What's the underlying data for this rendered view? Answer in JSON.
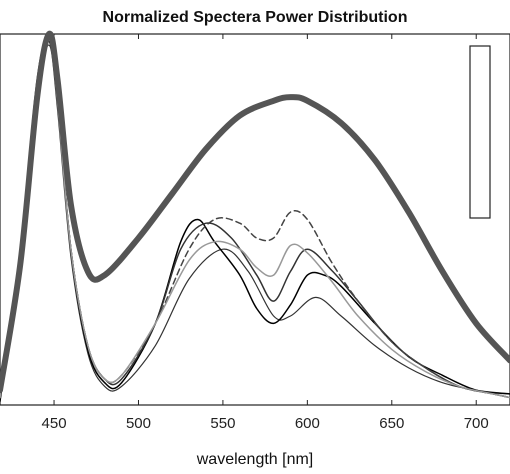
{
  "chart_data": {
    "type": "line",
    "title": "Normalized Spectera Power Distribution",
    "xlabel": "wavelength [nm]",
    "ylabel": "",
    "xlim": [
      418,
      720
    ],
    "ylim": [
      0,
      1.0
    ],
    "x_ticks": [
      450,
      500,
      550,
      600,
      650,
      700
    ],
    "grid": false,
    "legend": "top-right (box, cropped)",
    "series": [
      {
        "color": "#555555",
        "width": 6,
        "dash": "",
        "x": [
          418,
          430,
          440,
          447,
          452,
          460,
          470,
          480,
          500,
          520,
          540,
          560,
          580,
          590,
          600,
          620,
          640,
          660,
          680,
          700,
          720
        ],
        "y": [
          0.04,
          0.38,
          0.83,
          1.0,
          0.88,
          0.54,
          0.36,
          0.35,
          0.45,
          0.57,
          0.69,
          0.78,
          0.82,
          0.83,
          0.82,
          0.76,
          0.66,
          0.52,
          0.36,
          0.22,
          0.12
        ]
      },
      {
        "color": "#000000",
        "width": 1.5,
        "dash": "",
        "x": [
          418,
          430,
          440,
          447,
          452,
          460,
          470,
          480,
          490,
          510,
          525,
          535,
          545,
          560,
          570,
          580,
          590,
          600,
          610,
          620,
          640,
          660,
          680,
          700,
          720
        ],
        "y": [
          0.01,
          0.4,
          0.86,
          0.99,
          0.82,
          0.42,
          0.15,
          0.06,
          0.06,
          0.22,
          0.44,
          0.5,
          0.44,
          0.35,
          0.26,
          0.22,
          0.27,
          0.35,
          0.35,
          0.32,
          0.22,
          0.13,
          0.08,
          0.04,
          0.03
        ]
      },
      {
        "color": "#333333",
        "width": 1.5,
        "dash": "",
        "x": [
          418,
          430,
          440,
          447,
          452,
          460,
          470,
          480,
          490,
          510,
          525,
          540,
          555,
          570,
          580,
          590,
          600,
          615,
          630,
          650,
          670,
          690,
          710,
          720
        ],
        "y": [
          0.02,
          0.42,
          0.88,
          0.98,
          0.82,
          0.42,
          0.16,
          0.07,
          0.07,
          0.22,
          0.42,
          0.49,
          0.45,
          0.35,
          0.28,
          0.36,
          0.42,
          0.36,
          0.28,
          0.17,
          0.1,
          0.05,
          0.03,
          0.02
        ]
      },
      {
        "color": "#444444",
        "width": 1.5,
        "dash": "6,4",
        "x": [
          418,
          430,
          440,
          447,
          452,
          460,
          470,
          480,
          490,
          510,
          530,
          545,
          560,
          570,
          580,
          590,
          600,
          615,
          630,
          650,
          670,
          690,
          710,
          720
        ],
        "y": [
          0.02,
          0.42,
          0.86,
          0.99,
          0.82,
          0.42,
          0.16,
          0.07,
          0.08,
          0.22,
          0.42,
          0.5,
          0.49,
          0.45,
          0.45,
          0.52,
          0.5,
          0.38,
          0.28,
          0.17,
          0.1,
          0.05,
          0.03,
          0.02
        ]
      },
      {
        "color": "#999999",
        "width": 1.5,
        "dash": "",
        "x": [
          418,
          430,
          440,
          447,
          452,
          460,
          470,
          480,
          490,
          510,
          530,
          545,
          560,
          570,
          580,
          590,
          600,
          615,
          630,
          650,
          670,
          690,
          710,
          720
        ],
        "y": [
          0.02,
          0.42,
          0.86,
          0.99,
          0.82,
          0.42,
          0.16,
          0.07,
          0.08,
          0.22,
          0.39,
          0.44,
          0.42,
          0.37,
          0.35,
          0.43,
          0.41,
          0.33,
          0.24,
          0.15,
          0.09,
          0.05,
          0.03,
          0.02
        ]
      },
      {
        "color": "#333333",
        "width": 1.2,
        "dash": "",
        "x": [
          418,
          430,
          440,
          447,
          452,
          460,
          470,
          480,
          490,
          510,
          530,
          550,
          565,
          580,
          590,
          605,
          620,
          640,
          660,
          680,
          700,
          720
        ],
        "y": [
          0.02,
          0.38,
          0.82,
          0.97,
          0.8,
          0.4,
          0.14,
          0.05,
          0.05,
          0.16,
          0.34,
          0.42,
          0.36,
          0.24,
          0.24,
          0.29,
          0.24,
          0.16,
          0.1,
          0.06,
          0.04,
          0.03
        ]
      }
    ]
  }
}
